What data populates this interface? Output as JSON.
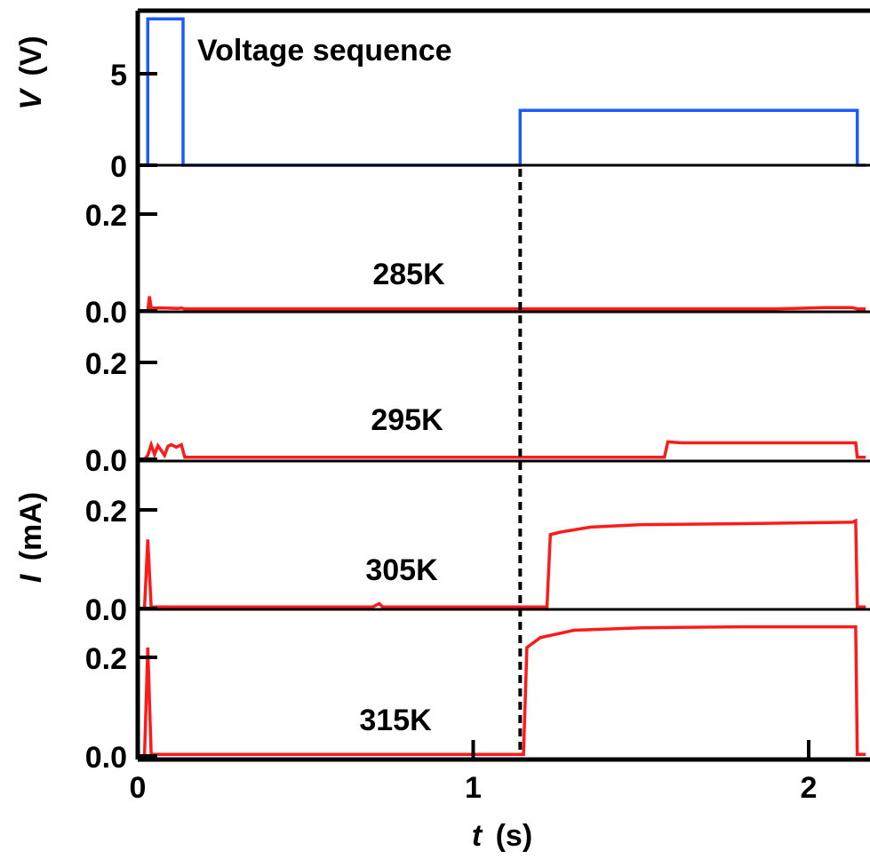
{
  "chart_data": {
    "type": "line",
    "x_axis": {
      "label_italic": "t",
      "label_unit": "(s)",
      "range": [
        0,
        2.17
      ],
      "ticks": [
        {
          "value": 0,
          "label": "0"
        },
        {
          "value": 1,
          "label": "1"
        },
        {
          "value": 2,
          "label": "2"
        }
      ]
    },
    "marker": {
      "x": 1.14,
      "style": "dashed"
    },
    "colors": {
      "voltage": "#1a5cff",
      "current": "#ff1a1a",
      "axis": "#000000"
    },
    "panels": [
      {
        "id": "voltage",
        "annotation": "Voltage sequence",
        "ylim": [
          0,
          8.3
        ],
        "ticks": [
          {
            "value": 0,
            "label": "0"
          },
          {
            "value": 5,
            "label": "5"
          }
        ],
        "series": {
          "color": "#1a5cff",
          "x": [
            0.0,
            0.03,
            0.03,
            0.135,
            0.135,
            1.14,
            1.14,
            2.145,
            2.145,
            2.17
          ],
          "y": [
            0,
            0,
            8,
            8,
            0,
            0,
            3,
            3,
            0,
            0
          ]
        }
      },
      {
        "id": "285K",
        "annotation": "285K",
        "ylim": [
          0,
          0.32
        ],
        "ticks": [
          {
            "value": 0.0,
            "label": "0.0"
          },
          {
            "value": 0.2,
            "label": "0.2"
          }
        ],
        "series": {
          "color": "#ff1a1a",
          "x": [
            0.0,
            0.03,
            0.035,
            0.04,
            0.05,
            0.08,
            0.12,
            0.13,
            0.14,
            0.3,
            0.6,
            1.0,
            1.14,
            1.5,
            1.9,
            2.05,
            2.13,
            2.145,
            2.17
          ],
          "y": [
            0.0,
            0.0,
            0.03,
            0.006,
            0.006,
            0.006,
            0.005,
            0.006,
            0.004,
            0.004,
            0.004,
            0.004,
            0.004,
            0.004,
            0.004,
            0.007,
            0.007,
            0.004,
            0.004
          ]
        }
      },
      {
        "id": "295K",
        "annotation": "295K",
        "ylim": [
          0,
          0.32
        ],
        "ticks": [
          {
            "value": 0.0,
            "label": "0.0"
          },
          {
            "value": 0.2,
            "label": "0.2"
          }
        ],
        "series": {
          "color": "#ff1a1a",
          "x": [
            0.0,
            0.02,
            0.03,
            0.04,
            0.05,
            0.06,
            0.08,
            0.09,
            0.1,
            0.115,
            0.13,
            0.14,
            0.3,
            0.7,
            1.14,
            1.3,
            1.57,
            1.58,
            1.62,
            1.9,
            2.14,
            2.145,
            2.17
          ],
          "y": [
            0.0,
            0.0,
            0.008,
            0.03,
            0.01,
            0.028,
            0.008,
            0.027,
            0.03,
            0.025,
            0.03,
            0.004,
            0.004,
            0.004,
            0.004,
            0.004,
            0.004,
            0.036,
            0.034,
            0.034,
            0.034,
            0.004,
            0.004
          ]
        }
      },
      {
        "id": "305K",
        "annotation": "305K",
        "ylim": [
          0,
          0.32
        ],
        "ticks": [
          {
            "value": 0.0,
            "label": "0.0"
          },
          {
            "value": 0.2,
            "label": "0.2"
          }
        ],
        "series": {
          "color": "#ff1a1a",
          "x": [
            0.0,
            0.02,
            0.03,
            0.04,
            0.3,
            0.7,
            0.72,
            0.73,
            1.1,
            1.14,
            1.22,
            1.23,
            1.26,
            1.35,
            1.5,
            1.8,
            2.13,
            2.14,
            2.145,
            2.17
          ],
          "y": [
            0.0,
            0.0,
            0.14,
            0.003,
            0.003,
            0.003,
            0.01,
            0.003,
            0.003,
            0.003,
            0.003,
            0.15,
            0.155,
            0.165,
            0.17,
            0.172,
            0.175,
            0.178,
            0.003,
            0.003
          ]
        }
      },
      {
        "id": "315K",
        "annotation": "315K",
        "ylim": [
          0,
          0.32
        ],
        "ticks": [
          {
            "value": 0.0,
            "label": "0.0"
          },
          {
            "value": 0.2,
            "label": "0.2"
          }
        ],
        "series": {
          "color": "#ff1a1a",
          "x": [
            0.0,
            0.02,
            0.03,
            0.04,
            0.3,
            1.14,
            1.15,
            1.16,
            1.2,
            1.3,
            1.5,
            1.8,
            2.14,
            2.145,
            2.17
          ],
          "y": [
            0.0,
            0.0,
            0.22,
            0.003,
            0.003,
            0.003,
            0.003,
            0.22,
            0.24,
            0.255,
            0.26,
            0.262,
            0.262,
            0.003,
            0.003
          ]
        }
      }
    ],
    "y_labels": [
      {
        "italic": "V",
        "unit": "(V)",
        "panel": "voltage"
      },
      {
        "italic": "I",
        "unit": "(mA)",
        "panel": "current"
      }
    ]
  }
}
